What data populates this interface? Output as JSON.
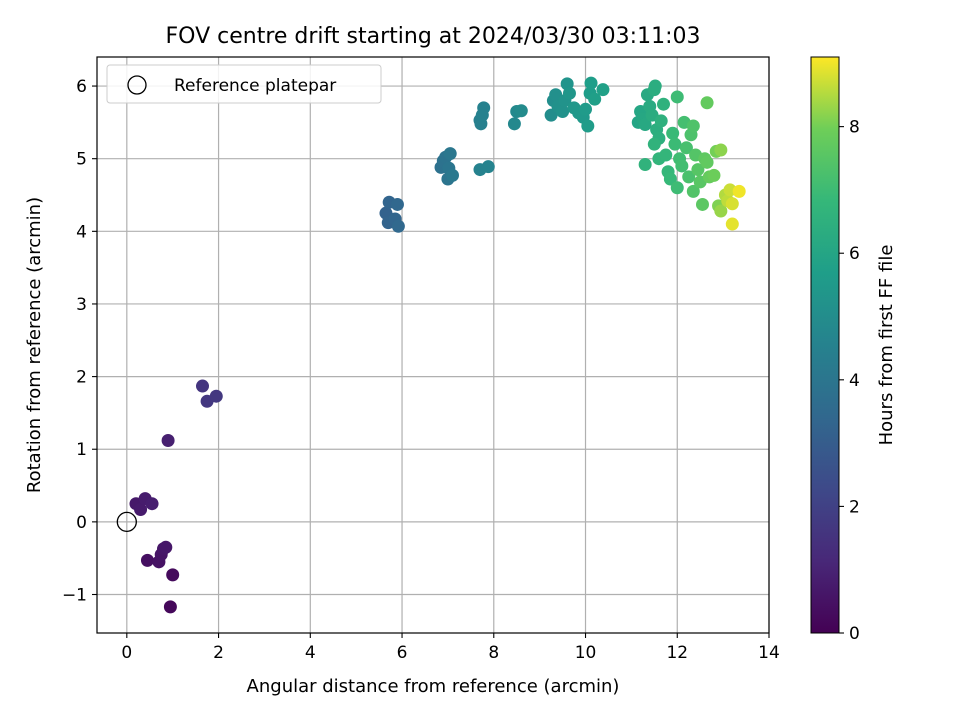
{
  "chart_data": {
    "type": "scatter",
    "title": "FOV centre drift starting at 2024/03/30 03:11:03",
    "xlabel": "Angular distance from reference (arcmin)",
    "ylabel": "Rotation from reference (arcmin)",
    "xlim": [
      -0.65,
      14.0
    ],
    "ylim": [
      -1.53,
      6.4
    ],
    "xticks": [
      0,
      2,
      4,
      6,
      8,
      10,
      12,
      14
    ],
    "yticks": [
      -1,
      0,
      1,
      2,
      3,
      4,
      5,
      6
    ],
    "grid": true,
    "legend": {
      "placement": "top-left",
      "entries": [
        "Reference platepar"
      ]
    },
    "reference_point": {
      "x": 0,
      "y": 0
    },
    "colorbar": {
      "label": "Hours from first FF file",
      "range": [
        0,
        9.1
      ],
      "ticks": [
        0,
        2,
        4,
        6,
        8
      ],
      "colormap": "viridis"
    },
    "series": [
      {
        "points": [
          {
            "x": 0.95,
            "y": -1.17,
            "t": 0.2
          },
          {
            "x": 1.0,
            "y": -0.73,
            "t": 0.25
          },
          {
            "x": 0.45,
            "y": -0.53,
            "t": 0.4
          },
          {
            "x": 0.7,
            "y": -0.55,
            "t": 0.5
          },
          {
            "x": 0.75,
            "y": -0.45,
            "t": 0.55
          },
          {
            "x": 0.8,
            "y": -0.37,
            "t": 0.6
          },
          {
            "x": 0.85,
            "y": -0.35,
            "t": 0.65
          },
          {
            "x": 0.2,
            "y": 0.25,
            "t": 0.7
          },
          {
            "x": 0.3,
            "y": 0.17,
            "t": 0.75
          },
          {
            "x": 0.4,
            "y": 0.32,
            "t": 0.8
          },
          {
            "x": 0.55,
            "y": 0.25,
            "t": 0.85
          },
          {
            "x": 0.9,
            "y": 1.12,
            "t": 0.9
          },
          {
            "x": 1.65,
            "y": 1.87,
            "t": 1.6
          },
          {
            "x": 1.75,
            "y": 1.66,
            "t": 1.65
          },
          {
            "x": 1.95,
            "y": 1.73,
            "t": 1.7
          },
          {
            "x": 5.65,
            "y": 4.25,
            "t": 3.2
          },
          {
            "x": 5.7,
            "y": 4.12,
            "t": 3.25
          },
          {
            "x": 5.72,
            "y": 4.4,
            "t": 3.3
          },
          {
            "x": 5.85,
            "y": 4.17,
            "t": 3.35
          },
          {
            "x": 5.9,
            "y": 4.37,
            "t": 3.4
          },
          {
            "x": 5.92,
            "y": 4.07,
            "t": 3.45
          },
          {
            "x": 6.85,
            "y": 4.88,
            "t": 3.8
          },
          {
            "x": 6.9,
            "y": 4.97,
            "t": 3.85
          },
          {
            "x": 6.95,
            "y": 5.02,
            "t": 3.9
          },
          {
            "x": 7.0,
            "y": 4.72,
            "t": 3.95
          },
          {
            "x": 7.02,
            "y": 4.87,
            "t": 4.0
          },
          {
            "x": 7.05,
            "y": 5.07,
            "t": 4.05
          },
          {
            "x": 7.1,
            "y": 4.77,
            "t": 4.1
          },
          {
            "x": 7.7,
            "y": 5.53,
            "t": 4.4
          },
          {
            "x": 7.72,
            "y": 5.48,
            "t": 4.45
          },
          {
            "x": 7.75,
            "y": 5.6,
            "t": 4.5
          },
          {
            "x": 7.78,
            "y": 5.7,
            "t": 4.5
          },
          {
            "x": 7.7,
            "y": 4.85,
            "t": 4.55
          },
          {
            "x": 7.88,
            "y": 4.89,
            "t": 4.6
          },
          {
            "x": 8.45,
            "y": 5.48,
            "t": 4.8
          },
          {
            "x": 8.5,
            "y": 5.65,
            "t": 4.85
          },
          {
            "x": 8.6,
            "y": 5.66,
            "t": 4.9
          },
          {
            "x": 9.25,
            "y": 5.6,
            "t": 5.0
          },
          {
            "x": 9.3,
            "y": 5.8,
            "t": 5.05
          },
          {
            "x": 9.35,
            "y": 5.88,
            "t": 5.1
          },
          {
            "x": 9.4,
            "y": 5.72,
            "t": 5.15
          },
          {
            "x": 9.5,
            "y": 5.65,
            "t": 5.2
          },
          {
            "x": 9.55,
            "y": 5.8,
            "t": 5.25
          },
          {
            "x": 9.6,
            "y": 6.03,
            "t": 5.3
          },
          {
            "x": 9.65,
            "y": 5.9,
            "t": 5.35
          },
          {
            "x": 9.75,
            "y": 5.7,
            "t": 5.4
          },
          {
            "x": 9.85,
            "y": 5.63,
            "t": 5.45
          },
          {
            "x": 9.95,
            "y": 5.57,
            "t": 5.5
          },
          {
            "x": 10.0,
            "y": 5.68,
            "t": 5.55
          },
          {
            "x": 10.05,
            "y": 5.45,
            "t": 5.6
          },
          {
            "x": 10.1,
            "y": 5.9,
            "t": 5.65
          },
          {
            "x": 10.12,
            "y": 6.04,
            "t": 5.7
          },
          {
            "x": 10.2,
            "y": 5.82,
            "t": 5.75
          },
          {
            "x": 10.38,
            "y": 5.95,
            "t": 5.8
          },
          {
            "x": 11.15,
            "y": 5.5,
            "t": 6.0
          },
          {
            "x": 11.2,
            "y": 5.65,
            "t": 6.05
          },
          {
            "x": 11.25,
            "y": 5.55,
            "t": 6.1
          },
          {
            "x": 11.3,
            "y": 5.47,
            "t": 6.15
          },
          {
            "x": 11.35,
            "y": 5.88,
            "t": 6.2
          },
          {
            "x": 11.4,
            "y": 5.72,
            "t": 6.25
          },
          {
            "x": 11.45,
            "y": 5.6,
            "t": 6.3
          },
          {
            "x": 11.5,
            "y": 5.95,
            "t": 6.35
          },
          {
            "x": 11.52,
            "y": 6.0,
            "t": 6.35
          },
          {
            "x": 11.55,
            "y": 5.4,
            "t": 6.4
          },
          {
            "x": 11.6,
            "y": 5.28,
            "t": 6.45
          },
          {
            "x": 11.65,
            "y": 5.52,
            "t": 6.5
          },
          {
            "x": 11.7,
            "y": 5.75,
            "t": 6.55
          },
          {
            "x": 11.5,
            "y": 5.2,
            "t": 6.6
          },
          {
            "x": 11.3,
            "y": 4.92,
            "t": 6.6
          },
          {
            "x": 11.6,
            "y": 5.0,
            "t": 6.7
          },
          {
            "x": 11.75,
            "y": 5.05,
            "t": 6.75
          },
          {
            "x": 11.8,
            "y": 4.82,
            "t": 6.8
          },
          {
            "x": 11.85,
            "y": 4.72,
            "t": 6.85
          },
          {
            "x": 11.9,
            "y": 5.35,
            "t": 6.9
          },
          {
            "x": 11.95,
            "y": 5.2,
            "t": 6.95
          },
          {
            "x": 12.0,
            "y": 4.6,
            "t": 7.0
          },
          {
            "x": 12.0,
            "y": 5.85,
            "t": 7.0
          },
          {
            "x": 12.05,
            "y": 5.0,
            "t": 7.05
          },
          {
            "x": 12.1,
            "y": 4.9,
            "t": 7.1
          },
          {
            "x": 12.15,
            "y": 5.5,
            "t": 7.15
          },
          {
            "x": 12.2,
            "y": 5.15,
            "t": 7.2
          },
          {
            "x": 12.25,
            "y": 4.75,
            "t": 7.25
          },
          {
            "x": 12.3,
            "y": 5.33,
            "t": 7.3
          },
          {
            "x": 12.35,
            "y": 5.45,
            "t": 7.35
          },
          {
            "x": 12.35,
            "y": 4.55,
            "t": 7.4
          },
          {
            "x": 12.4,
            "y": 5.05,
            "t": 7.45
          },
          {
            "x": 12.45,
            "y": 4.85,
            "t": 7.5
          },
          {
            "x": 12.5,
            "y": 4.68,
            "t": 7.55
          },
          {
            "x": 12.55,
            "y": 4.37,
            "t": 7.6
          },
          {
            "x": 12.6,
            "y": 5.0,
            "t": 7.65
          },
          {
            "x": 12.65,
            "y": 4.95,
            "t": 7.7
          },
          {
            "x": 12.65,
            "y": 5.77,
            "t": 7.75
          },
          {
            "x": 12.7,
            "y": 4.75,
            "t": 7.8
          },
          {
            "x": 12.8,
            "y": 4.77,
            "t": 7.9
          },
          {
            "x": 12.85,
            "y": 5.1,
            "t": 8.0
          },
          {
            "x": 12.9,
            "y": 4.35,
            "t": 8.1
          },
          {
            "x": 12.95,
            "y": 5.12,
            "t": 8.2
          },
          {
            "x": 12.95,
            "y": 4.28,
            "t": 8.3
          },
          {
            "x": 13.05,
            "y": 4.5,
            "t": 8.5
          },
          {
            "x": 13.1,
            "y": 4.42,
            "t": 8.6
          },
          {
            "x": 13.15,
            "y": 4.57,
            "t": 8.7
          },
          {
            "x": 13.2,
            "y": 4.38,
            "t": 8.8
          },
          {
            "x": 13.2,
            "y": 4.1,
            "t": 8.9
          },
          {
            "x": 13.35,
            "y": 4.55,
            "t": 9.0
          }
        ]
      }
    ]
  }
}
